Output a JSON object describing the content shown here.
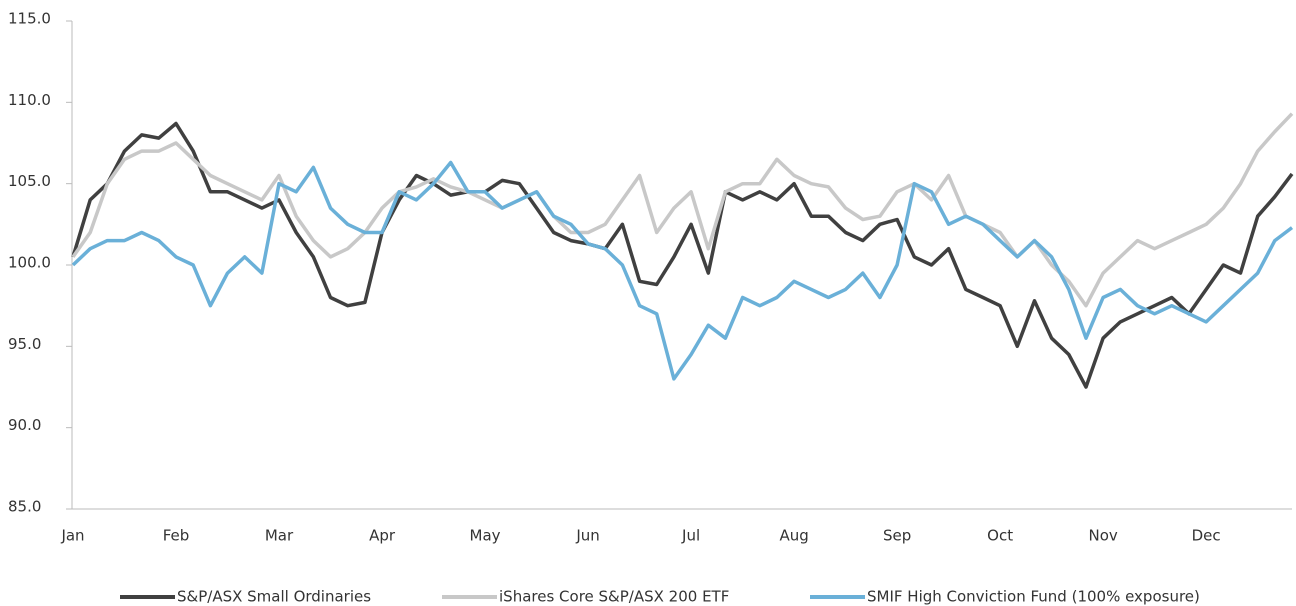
{
  "chart_data": {
    "type": "line",
    "categories": [
      "Jan",
      null,
      null,
      null,
      null,
      null,
      "Feb",
      null,
      null,
      null,
      null,
      null,
      "Mar",
      null,
      null,
      null,
      null,
      null,
      "Apr",
      null,
      null,
      null,
      null,
      null,
      "May",
      null,
      null,
      null,
      null,
      null,
      "Jun",
      null,
      null,
      null,
      null,
      null,
      "Jul",
      null,
      null,
      null,
      null,
      null,
      "Aug",
      null,
      null,
      null,
      null,
      null,
      "Sep",
      null,
      null,
      null,
      null,
      null,
      "Oct",
      null,
      null,
      null,
      null,
      null,
      "Nov",
      null,
      null,
      null,
      null,
      null,
      "Dec",
      null,
      null,
      null,
      null,
      null
    ],
    "ylim": [
      85,
      115
    ],
    "yticks": [
      {
        "value": 85,
        "label": "85.0"
      },
      {
        "value": 90,
        "label": "90.0"
      },
      {
        "value": 95,
        "label": "95.0"
      },
      {
        "value": 100,
        "label": "100.0"
      },
      {
        "value": 105,
        "label": "105.0"
      },
      {
        "value": 110,
        "label": "110.0"
      },
      {
        "value": 115,
        "label": "115.0"
      }
    ],
    "grid": false,
    "legend": "bottom",
    "series": [
      {
        "name": "S&P/ASX Small Ordinaries",
        "color": "#404040",
        "values": [
          100.5,
          104,
          105,
          107,
          108,
          107.8,
          108.7,
          107,
          104.5,
          104.5,
          104,
          103.5,
          104,
          102,
          100.5,
          98,
          97.5,
          97.7,
          102,
          104,
          105.5,
          105,
          104.3,
          104.5,
          104.5,
          105.2,
          105,
          103.5,
          102,
          101.5,
          101.3,
          101,
          102.5,
          99,
          98.8,
          100.5,
          102.5,
          99.5,
          104.5,
          104,
          104.5,
          104,
          105,
          103,
          103,
          102,
          101.5,
          102.5,
          102.8,
          100.5,
          100,
          101,
          98.5,
          98,
          97.5,
          95,
          97.8,
          95.5,
          94.5,
          92.5,
          95.5,
          96.5,
          97,
          97.5,
          98,
          97,
          98.5,
          100,
          99.5,
          103,
          104.2,
          105.6
        ]
      },
      {
        "name": "iShares Core S&P/ASX 200 ETF",
        "color": "#c8c8c8",
        "values": [
          100.5,
          102,
          105,
          106.5,
          107,
          107,
          107.5,
          106.5,
          105.5,
          105,
          104.5,
          104,
          105.5,
          103,
          101.5,
          100.5,
          101,
          102,
          103.5,
          104.5,
          104.8,
          105.3,
          104.8,
          104.5,
          104,
          103.5,
          104,
          104.5,
          103,
          102,
          102,
          102.5,
          104,
          105.5,
          102,
          103.5,
          104.5,
          101,
          104.5,
          105,
          105,
          106.5,
          105.5,
          105,
          104.8,
          103.5,
          102.8,
          103,
          104.5,
          105,
          104,
          105.5,
          103,
          102.5,
          102,
          100.5,
          101.5,
          100,
          99,
          97.5,
          99.5,
          100.5,
          101.5,
          101,
          101.5,
          102,
          102.5,
          103.5,
          105,
          107,
          108.2,
          109.3
        ]
      },
      {
        "name": "SMIF High Conviction Fund (100% exposure)",
        "color": "#6ab0d8",
        "values": [
          100,
          101,
          101.5,
          101.5,
          102,
          101.5,
          100.5,
          100,
          97.5,
          99.5,
          100.5,
          99.5,
          105,
          104.5,
          106,
          103.5,
          102.5,
          102,
          102,
          104.5,
          104,
          105,
          106.3,
          104.5,
          104.5,
          103.5,
          104,
          104.5,
          103,
          102.5,
          101.3,
          101,
          100,
          97.5,
          97,
          93,
          94.5,
          96.3,
          95.5,
          98,
          97.5,
          98,
          99,
          98.5,
          98,
          98.5,
          99.5,
          98,
          100,
          105,
          104.5,
          102.5,
          103,
          102.5,
          101.5,
          100.5,
          101.5,
          100.5,
          98.5,
          95.5,
          98,
          98.5,
          97.5,
          97,
          97.5,
          97,
          96.5,
          97.5,
          98.5,
          99.5,
          101.5,
          102.3
        ]
      }
    ]
  }
}
